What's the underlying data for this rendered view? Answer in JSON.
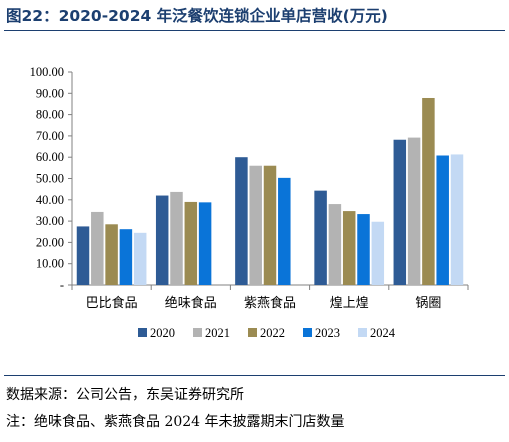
{
  "title": "图22：2020-2024 年泛餐饮连锁企业单店营收(万元)",
  "notes": {
    "source": "数据来源：公司公告，东吴证券研究所",
    "footnote": "注：绝味食品、紫燕食品 2024 年未披露期末门店数量"
  },
  "chart_data": {
    "type": "bar",
    "title": "",
    "xlabel": "",
    "ylabel": "",
    "categories": [
      "巴比食品",
      "绝味食品",
      "紫燕食品",
      "煌上煌",
      "锅圈"
    ],
    "series": [
      {
        "name": "2020",
        "color": "#2e5b95",
        "values": [
          27.5,
          42.0,
          60.0,
          44.3,
          68.2
        ]
      },
      {
        "name": "2021",
        "color": "#b3b3b3",
        "values": [
          34.3,
          43.7,
          56.0,
          38.0,
          69.2
        ]
      },
      {
        "name": "2022",
        "color": "#9b8b52",
        "values": [
          28.5,
          39.0,
          56.0,
          34.7,
          87.8
        ]
      },
      {
        "name": "2023",
        "color": "#0a74d8",
        "values": [
          26.2,
          38.8,
          50.3,
          33.3,
          60.8
        ]
      },
      {
        "name": "2024",
        "color": "#c3d9f4",
        "values": [
          24.5,
          null,
          null,
          29.7,
          61.3
        ]
      }
    ],
    "ylim": [
      0,
      100
    ],
    "yticks": [
      "-",
      "10.00",
      "20.00",
      "30.00",
      "40.00",
      "50.00",
      "60.00",
      "70.00",
      "80.00",
      "90.00",
      "100.00"
    ],
    "grid": false,
    "legend": "bottom"
  }
}
